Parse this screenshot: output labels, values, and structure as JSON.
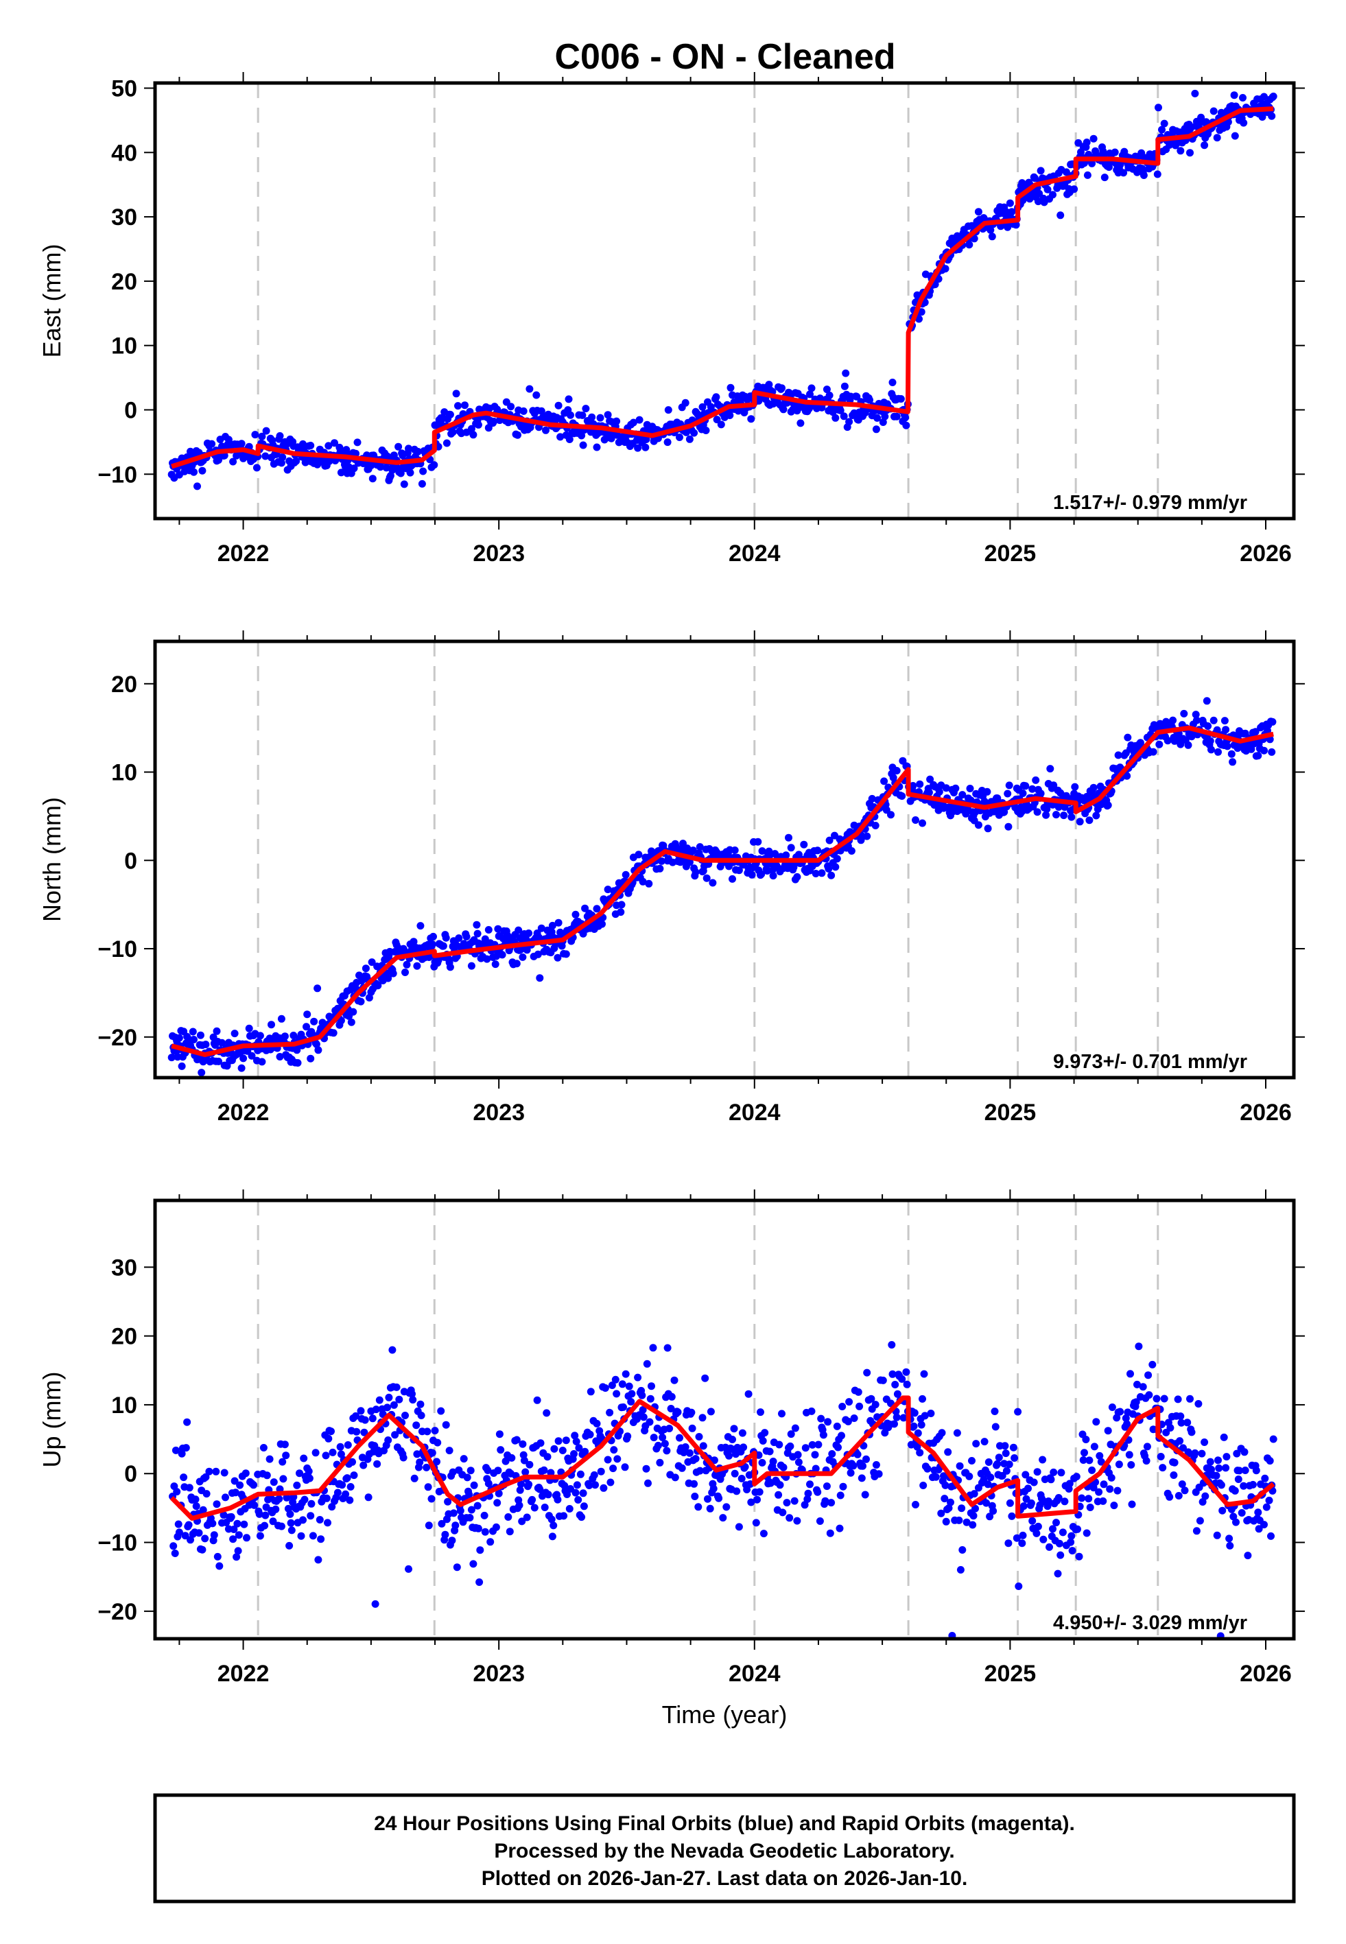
{
  "chart_data": {
    "type": "scatter",
    "title": "C006  - ON - Cleaned",
    "xlabel": "Time (year)",
    "xlim": [
      2021.655,
      2026.11
    ],
    "xticks": [
      2022,
      2023,
      2024,
      2025,
      2026
    ],
    "xtick_labels": [
      "2022",
      "2023",
      "2024",
      "2025",
      "2026"
    ],
    "grid": "vertical dashed lines at equipment/offset epochs",
    "offset_epochs": [
      2022.058,
      2022.748,
      2024.0,
      2024.602,
      2025.03,
      2025.257,
      2025.578
    ],
    "data_span": [
      2021.72,
      2026.03
    ],
    "colors": {
      "data": "#0000ff",
      "model": "#ff0000",
      "offset_lines": "#c8c8c8"
    },
    "panels": [
      {
        "name": "East",
        "ylabel": "East (mm)",
        "ylim": [
          -16.9,
          50.8
        ],
        "yticks": [
          -10,
          0,
          10,
          20,
          30,
          40,
          50
        ],
        "ytick_labels": [
          "−10",
          "0",
          "10",
          "20",
          "30",
          "40",
          "50"
        ],
        "rate": "1.517+/- 0.979 mm/yr",
        "noise_sigma": 1.2,
        "model": [
          [
            2021.72,
            -8.8
          ],
          [
            2021.9,
            -6.5
          ],
          [
            2022.0,
            -6.2
          ],
          [
            2022.058,
            -6.8
          ],
          [
            2022.058,
            -5.6
          ],
          [
            2022.2,
            -6.8
          ],
          [
            2022.4,
            -7.3
          ],
          [
            2022.6,
            -8.2
          ],
          [
            2022.7,
            -7.8
          ],
          [
            2022.748,
            -6.3
          ],
          [
            2022.748,
            -3.5
          ],
          [
            2022.9,
            -0.8
          ],
          [
            2022.95,
            -0.5
          ],
          [
            2023.2,
            -2.3
          ],
          [
            2023.4,
            -2.8
          ],
          [
            2023.6,
            -4.0
          ],
          [
            2023.75,
            -2.5
          ],
          [
            2023.9,
            0.5
          ],
          [
            2024.0,
            0.8
          ],
          [
            2024.0,
            2.7
          ],
          [
            2024.2,
            1.2
          ],
          [
            2024.4,
            0.8
          ],
          [
            2024.6,
            -0.3
          ],
          [
            2024.602,
            12
          ],
          [
            2024.65,
            17
          ],
          [
            2024.75,
            24
          ],
          [
            2024.9,
            29
          ],
          [
            2025.03,
            29.5
          ],
          [
            2025.03,
            33
          ],
          [
            2025.1,
            35
          ],
          [
            2025.257,
            36.3
          ],
          [
            2025.257,
            39
          ],
          [
            2025.4,
            39
          ],
          [
            2025.578,
            38.3
          ],
          [
            2025.578,
            42
          ],
          [
            2025.7,
            42.5
          ],
          [
            2025.9,
            46.5
          ],
          [
            2026.03,
            46.8
          ]
        ]
      },
      {
        "name": "North",
        "ylabel": "North (mm)",
        "ylim": [
          -24.6,
          24.8
        ],
        "yticks": [
          -20,
          -10,
          0,
          10,
          20
        ],
        "ytick_labels": [
          "−20",
          "−10",
          "0",
          "10",
          "20"
        ],
        "rate": "9.973+/- 0.701 mm/yr",
        "noise_sigma": 1.0,
        "model": [
          [
            2021.72,
            -21
          ],
          [
            2021.85,
            -22
          ],
          [
            2022.0,
            -21
          ],
          [
            2022.2,
            -20.8
          ],
          [
            2022.3,
            -20
          ],
          [
            2022.45,
            -15
          ],
          [
            2022.6,
            -11
          ],
          [
            2022.748,
            -10.3
          ],
          [
            2022.748,
            -10.8
          ],
          [
            2022.9,
            -10.2
          ],
          [
            2023.1,
            -9.5
          ],
          [
            2023.25,
            -9.0
          ],
          [
            2023.4,
            -6
          ],
          [
            2023.55,
            -1
          ],
          [
            2023.65,
            1
          ],
          [
            2023.8,
            0
          ],
          [
            2024.0,
            0
          ],
          [
            2024.25,
            0
          ],
          [
            2024.4,
            3
          ],
          [
            2024.602,
            10.3
          ],
          [
            2024.602,
            7.5
          ],
          [
            2024.8,
            6.5
          ],
          [
            2024.9,
            6
          ],
          [
            2025.1,
            7
          ],
          [
            2025.257,
            6.5
          ],
          [
            2025.257,
            5.5
          ],
          [
            2025.35,
            7
          ],
          [
            2025.578,
            14.5
          ],
          [
            2025.7,
            15
          ],
          [
            2025.9,
            13.5
          ],
          [
            2026.03,
            14.3
          ]
        ]
      },
      {
        "name": "Up",
        "ylabel": "Up (mm)",
        "ylim": [
          -24.0,
          39.7
        ],
        "yticks": [
          -20,
          -10,
          0,
          10,
          20,
          30
        ],
        "ytick_labels": [
          "−20",
          "−10",
          "0",
          "10",
          "20",
          "30"
        ],
        "rate": "4.950+/- 3.029 mm/yr",
        "noise_sigma": 4.0,
        "model": [
          [
            2021.72,
            -3.5
          ],
          [
            2021.8,
            -6.5
          ],
          [
            2021.95,
            -5
          ],
          [
            2022.058,
            -3
          ],
          [
            2022.2,
            -2.8
          ],
          [
            2022.3,
            -2.5
          ],
          [
            2022.45,
            4
          ],
          [
            2022.57,
            8.5
          ],
          [
            2022.7,
            4
          ],
          [
            2022.748,
            0.5
          ],
          [
            2022.8,
            -3
          ],
          [
            2022.85,
            -4.5
          ],
          [
            2023.0,
            -2
          ],
          [
            2023.1,
            -0.5
          ],
          [
            2023.25,
            -0.5
          ],
          [
            2023.4,
            4
          ],
          [
            2023.55,
            10.5
          ],
          [
            2023.7,
            7
          ],
          [
            2023.85,
            0.5
          ],
          [
            2023.95,
            1.5
          ],
          [
            2024.0,
            3
          ],
          [
            2024.0,
            -1.5
          ],
          [
            2024.05,
            0
          ],
          [
            2024.3,
            0
          ],
          [
            2024.45,
            6
          ],
          [
            2024.58,
            11
          ],
          [
            2024.602,
            11
          ],
          [
            2024.602,
            6
          ],
          [
            2024.7,
            3
          ],
          [
            2024.85,
            -4.5
          ],
          [
            2024.95,
            -2
          ],
          [
            2025.03,
            -1
          ],
          [
            2025.03,
            -6.2
          ],
          [
            2025.257,
            -5.5
          ],
          [
            2025.257,
            -2.5
          ],
          [
            2025.35,
            0
          ],
          [
            2025.5,
            8
          ],
          [
            2025.578,
            9.5
          ],
          [
            2025.578,
            5.5
          ],
          [
            2025.7,
            2
          ],
          [
            2025.85,
            -4.5
          ],
          [
            2025.95,
            -4
          ],
          [
            2026.03,
            -1.5
          ]
        ]
      }
    ]
  },
  "footer": {
    "line1": "24 Hour Positions Using Final Orbits (blue) and Rapid Orbits (magenta).",
    "line2": "Processed by the Nevada Geodetic Laboratory.",
    "line3": "Plotted on 2026-Jan-27. Last data on 2026-Jan-10."
  }
}
